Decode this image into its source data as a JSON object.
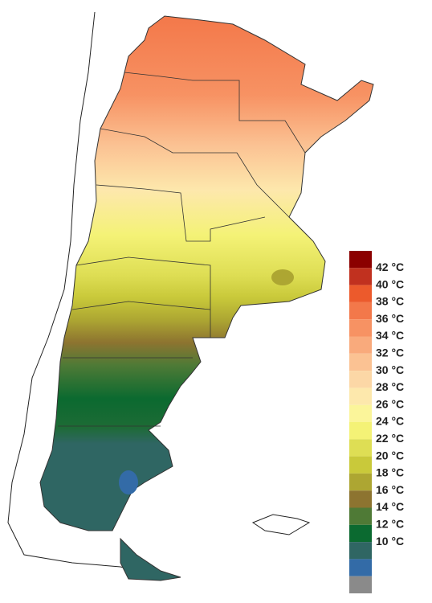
{
  "legend": {
    "colors": [
      "#8b0000",
      "#c1311f",
      "#ec5a2c",
      "#f3784a",
      "#f79263",
      "#f9aa7c",
      "#fbc293",
      "#fcd7a6",
      "#fde8ac",
      "#fbf59a",
      "#f4f276",
      "#dede54",
      "#c9c93a",
      "#ada632",
      "#8d7430",
      "#4f7a36",
      "#0b6a30",
      "#2f6663",
      "#336ba7",
      "#8a8a8a"
    ],
    "labels": [
      "42 °C",
      "40 °C",
      "38 °C",
      "36 °C",
      "34 °C",
      "32 °C",
      "30 °C",
      "28 °C",
      "26 °C",
      "24 °C",
      "22 °C",
      "20 °C",
      "18 °C",
      "16 °C",
      "14 °C",
      "12 °C",
      "10 °C"
    ]
  }
}
